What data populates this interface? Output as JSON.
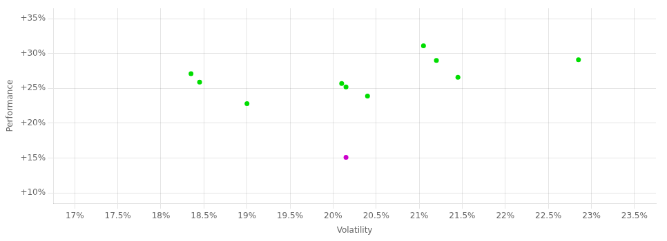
{
  "chart_data": {
    "type": "scatter",
    "xlabel": "Volatility",
    "ylabel": "Performance",
    "series": [
      {
        "color": "#00dd00",
        "x": [
          18.35,
          18.45,
          19.0,
          20.1,
          20.15,
          20.4,
          21.05,
          21.2,
          21.45,
          22.85
        ],
        "values": [
          27.1,
          25.9,
          22.8,
          25.7,
          25.2,
          23.9,
          31.1,
          29.0,
          26.6,
          29.1
        ]
      },
      {
        "color": "#cc00cc",
        "x": [
          20.15
        ],
        "values": [
          15.1
        ]
      }
    ],
    "xlim": [
      16.75,
      23.75
    ],
    "xticks": [
      {
        "value": 17.0,
        "label": "17%"
      },
      {
        "value": 17.5,
        "label": "17.5%"
      },
      {
        "value": 18.0,
        "label": "18%"
      },
      {
        "value": 18.5,
        "label": "18.5%"
      },
      {
        "value": 19.0,
        "label": "19%"
      },
      {
        "value": 19.5,
        "label": "19.5%"
      },
      {
        "value": 20.0,
        "label": "20%"
      },
      {
        "value": 20.5,
        "label": "20.5%"
      },
      {
        "value": 21.0,
        "label": "21%"
      },
      {
        "value": 21.5,
        "label": "21.5%"
      },
      {
        "value": 22.0,
        "label": "22%"
      },
      {
        "value": 22.5,
        "label": "22.5%"
      },
      {
        "value": 23.0,
        "label": "23%"
      },
      {
        "value": 23.5,
        "label": "23.5%"
      }
    ],
    "ylim": [
      8.5,
      36.5
    ],
    "yticks": [
      {
        "value": 10,
        "label": "+10%"
      },
      {
        "value": 15,
        "label": "+15%"
      },
      {
        "value": 20,
        "label": "+20%"
      },
      {
        "value": 25,
        "label": "+25%"
      },
      {
        "value": 30,
        "label": "+30%"
      },
      {
        "value": 35,
        "label": "+35%"
      }
    ],
    "grid": true
  }
}
